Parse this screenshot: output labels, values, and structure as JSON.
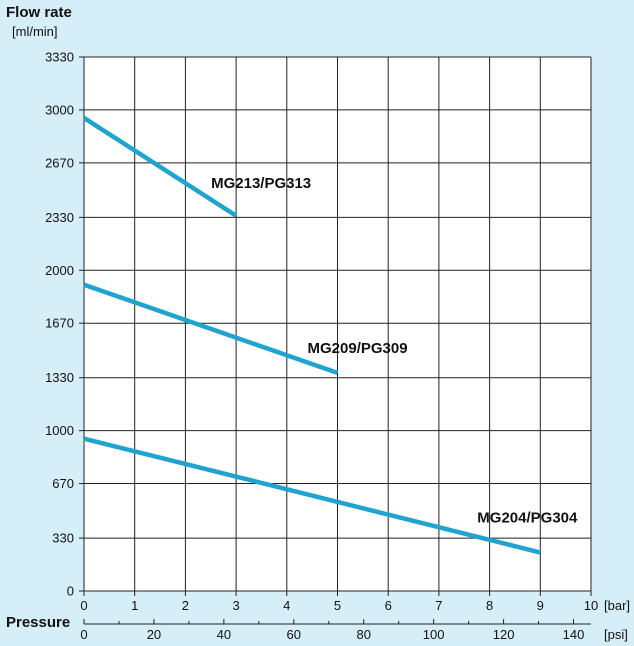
{
  "chart_data": {
    "type": "line",
    "title": "",
    "ylabel": "Flow rate",
    "ylabel_unit": "[ml/min]",
    "xlabel": "Pressure",
    "x_unit_primary": "[bar]",
    "x_unit_secondary": "[psi]",
    "xlim": [
      0,
      10
    ],
    "ylim": [
      0,
      3330
    ],
    "x_ticks": [
      0,
      1,
      2,
      3,
      4,
      5,
      6,
      7,
      8,
      9,
      10
    ],
    "y_ticks": [
      0,
      330,
      670,
      1000,
      1330,
      1670,
      2000,
      2330,
      2670,
      3000,
      3330
    ],
    "psi_ticks": [
      0,
      20,
      40,
      60,
      80,
      100,
      120,
      140
    ],
    "grid": true,
    "line_color": "#1fa3cf",
    "series": [
      {
        "name": "MG213/PG313",
        "points": [
          [
            0,
            2950
          ],
          [
            3,
            2340
          ]
        ]
      },
      {
        "name": "MG209/PG309",
        "points": [
          [
            0,
            1910
          ],
          [
            5,
            1360
          ]
        ]
      },
      {
        "name": "MG204/PG304",
        "points": [
          [
            0,
            950
          ],
          [
            9,
            240
          ]
        ]
      }
    ]
  }
}
